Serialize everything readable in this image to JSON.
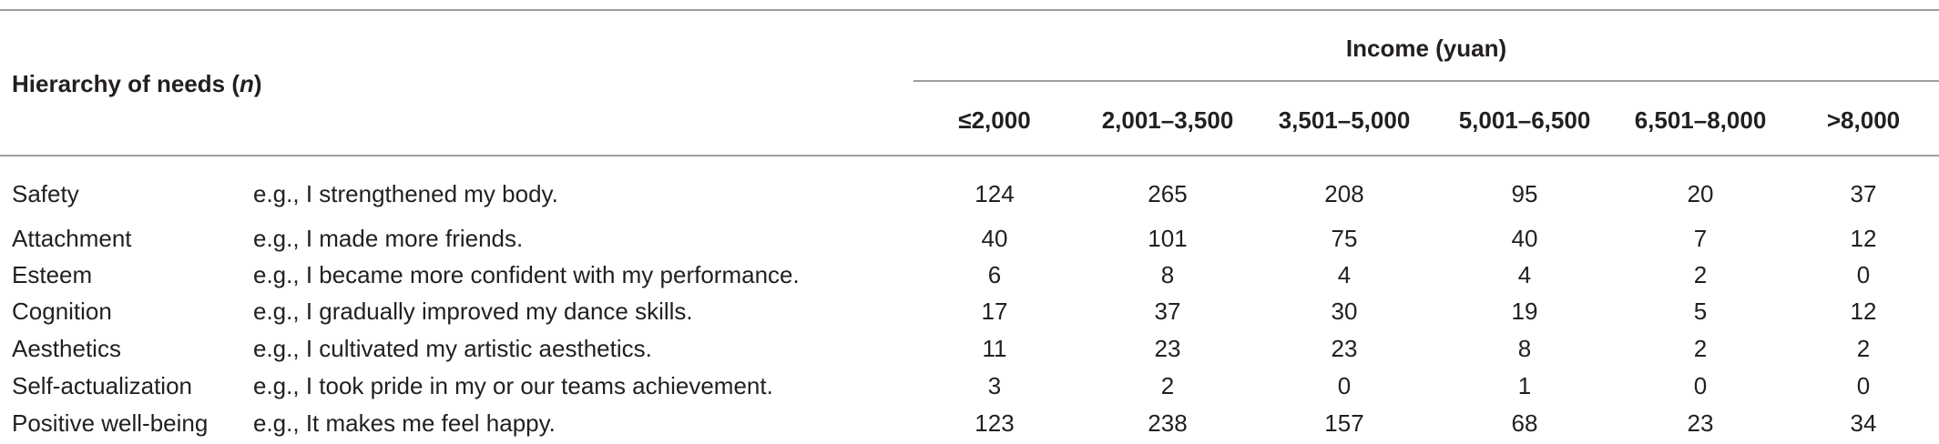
{
  "table": {
    "stub_header": "Hierarchy of needs",
    "stub_header_n": "n",
    "income_header": "Income (yuan)",
    "income_columns": [
      "≤2,000",
      "2,001–3,500",
      "3,501–5,000",
      "5,001–6,500",
      "6,501–8,000",
      ">8,000"
    ],
    "rows": [
      {
        "need": "Safety",
        "example": "e.g., I strengthened my body.",
        "values": [
          "124",
          "265",
          "208",
          "95",
          "20",
          "37"
        ]
      },
      {
        "need": "Attachment",
        "example": "e.g., I made more friends.",
        "values": [
          "40",
          "101",
          "75",
          "40",
          "7",
          "12"
        ]
      },
      {
        "need": "Esteem",
        "example": "e.g., I became more confident with my performance.",
        "values": [
          "6",
          "8",
          "4",
          "4",
          "2",
          "0"
        ]
      },
      {
        "need": "Cognition",
        "example": "e.g., I gradually improved my dance skills.",
        "values": [
          "17",
          "37",
          "30",
          "19",
          "5",
          "12"
        ]
      },
      {
        "need": "Aesthetics",
        "example": "e.g., I cultivated my artistic aesthetics.",
        "values": [
          "11",
          "23",
          "23",
          "8",
          "2",
          "2"
        ]
      },
      {
        "need": "Self-actualization",
        "example": "e.g., I took pride in my or our teams achievement.",
        "values": [
          "3",
          "2",
          "0",
          "1",
          "0",
          "0"
        ]
      },
      {
        "need": "Positive well-being",
        "example": "e.g., It makes me feel happy.",
        "values": [
          "123",
          "238",
          "157",
          "68",
          "23",
          "34"
        ]
      }
    ]
  }
}
